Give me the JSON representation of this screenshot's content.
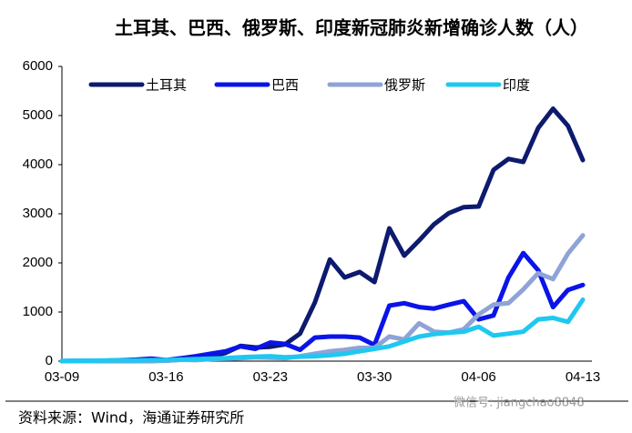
{
  "chart_data": {
    "type": "line",
    "title": "土耳其、巴西、俄罗斯、印度新冠肺炎新增确诊人数（人）",
    "source": "资料来源：Wind，海通证券研究所",
    "watermark": "微信号: jiangchao8848",
    "categories": [
      "03-09",
      null,
      null,
      null,
      null,
      null,
      null,
      "03-16",
      null,
      null,
      null,
      null,
      null,
      null,
      "03-23",
      null,
      null,
      null,
      null,
      null,
      null,
      "03-30",
      null,
      null,
      null,
      null,
      null,
      null,
      "04-06",
      null,
      null,
      null,
      null,
      null,
      null,
      "04-13"
    ],
    "ylim": [
      0,
      6000
    ],
    "yticks": [
      0,
      1000,
      2000,
      3000,
      4000,
      5000,
      6000
    ],
    "grid": false,
    "legend": "top",
    "series": [
      {
        "name": "土耳其",
        "color": "#0d1a6e",
        "values": [
          0,
          0,
          1,
          1,
          2,
          3,
          4,
          12,
          29,
          51,
          93,
          168,
          311,
          277,
          293,
          343,
          561,
          1196,
          2069,
          1704,
          1815,
          1610,
          2704,
          2148,
          2456,
          2786,
          3013,
          3135,
          3148,
          3892,
          4117,
          4056,
          4747,
          5138,
          4789,
          4093
        ]
      },
      {
        "name": "巴西",
        "color": "#0a14e8",
        "values": [
          0,
          5,
          5,
          10,
          20,
          30,
          50,
          20,
          60,
          100,
          150,
          200,
          300,
          250,
          380,
          350,
          230,
          480,
          500,
          500,
          480,
          330,
          1130,
          1180,
          1100,
          1070,
          1150,
          1220,
          850,
          930,
          1700,
          2200,
          1850,
          1100,
          1450,
          1550
        ]
      },
      {
        "name": "俄罗斯",
        "color": "#8fa3d6",
        "values": [
          0,
          0,
          0,
          1,
          2,
          3,
          5,
          10,
          30,
          20,
          40,
          50,
          60,
          80,
          70,
          60,
          100,
          150,
          200,
          230,
          270,
          270,
          500,
          440,
          770,
          600,
          580,
          650,
          950,
          1150,
          1180,
          1460,
          1790,
          1670,
          2190,
          2560
        ]
      },
      {
        "name": "印度",
        "color": "#1ec8f0",
        "values": [
          5,
          10,
          10,
          15,
          20,
          15,
          20,
          20,
          30,
          40,
          50,
          60,
          80,
          90,
          100,
          80,
          90,
          100,
          120,
          150,
          200,
          250,
          300,
          400,
          500,
          550,
          580,
          600,
          700,
          520,
          560,
          600,
          850,
          880,
          800,
          1250
        ]
      }
    ]
  }
}
